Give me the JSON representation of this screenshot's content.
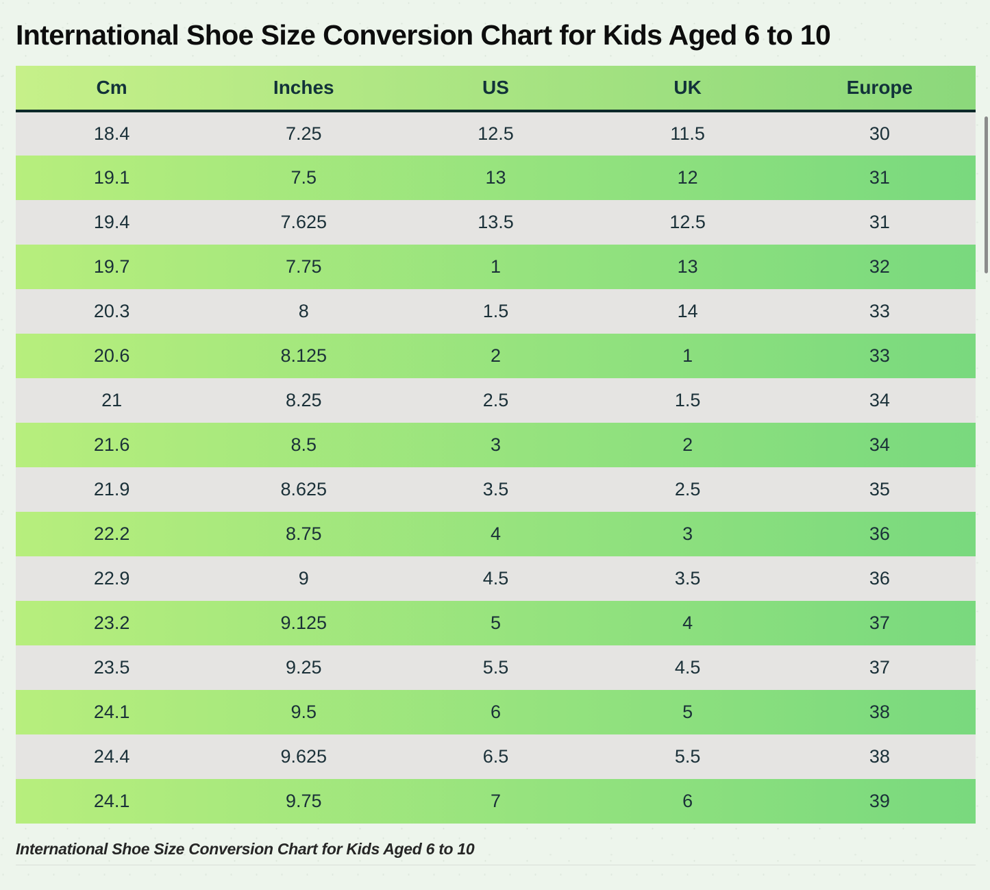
{
  "page": {
    "title": "International Shoe Size Conversion Chart for Kids Aged 6 to 10",
    "caption": "International Shoe Size Conversion Chart for Kids Aged 6 to 10"
  },
  "chart_data": {
    "type": "table",
    "title": "International Shoe Size Conversion Chart for Kids Aged 6 to 10",
    "columns": [
      "Cm",
      "Inches",
      "US",
      "UK",
      "Europe"
    ],
    "rows": [
      [
        "18.4",
        "7.25",
        "12.5",
        "11.5",
        "30"
      ],
      [
        "19.1",
        "7.5",
        "13",
        "12",
        "31"
      ],
      [
        "19.4",
        "7.625",
        "13.5",
        "12.5",
        "31"
      ],
      [
        "19.7",
        "7.75",
        "1",
        "13",
        "32"
      ],
      [
        "20.3",
        "8",
        "1.5",
        "14",
        "33"
      ],
      [
        "20.6",
        "8.125",
        "2",
        "1",
        "33"
      ],
      [
        "21",
        "8.25",
        "2.5",
        "1.5",
        "34"
      ],
      [
        "21.6",
        "8.5",
        "3",
        "2",
        "34"
      ],
      [
        "21.9",
        "8.625",
        "3.5",
        "2.5",
        "35"
      ],
      [
        "22.2",
        "8.75",
        "4",
        "3",
        "36"
      ],
      [
        "22.9",
        "9",
        "4.5",
        "3.5",
        "36"
      ],
      [
        "23.2",
        "9.125",
        "5",
        "4",
        "37"
      ],
      [
        "23.5",
        "9.25",
        "5.5",
        "4.5",
        "37"
      ],
      [
        "24.1",
        "9.5",
        "6",
        "5",
        "38"
      ],
      [
        "24.4",
        "9.625",
        "6.5",
        "5.5",
        "38"
      ],
      [
        "24.1",
        "9.75",
        "7",
        "6",
        "39"
      ]
    ],
    "layout": {
      "row_striping": [
        "gray",
        "green-gradient"
      ],
      "header_background": "green-gradient",
      "grid": "off"
    }
  },
  "colors": {
    "page_background": "#edf5ec",
    "title_text": "#0d0d0d",
    "header_gradient_start": "#c6f089",
    "header_gradient_end": "#8bd87b",
    "header_text": "#12323a",
    "header_underline": "#0c2929",
    "row_gray": "#e5e4e2",
    "row_green_gradient_start": "#b7ee7d",
    "row_green_gradient_end": "#79d97e",
    "cell_text": "#1a3038",
    "caption_text": "#262626",
    "divider": "#d9ded8",
    "scrollbar": "#8b8b8b"
  }
}
